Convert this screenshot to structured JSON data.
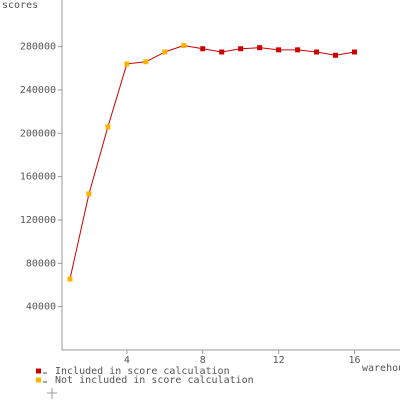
{
  "chart_data": {
    "type": "line",
    "y_label": "scores",
    "x_label": "warehouses",
    "x": [
      1,
      2,
      3,
      4,
      5,
      6,
      7,
      8,
      9,
      10,
      11,
      12,
      13,
      14,
      15,
      16
    ],
    "line_color": "#cc0000",
    "series": [
      {
        "name": "Included in score calculation",
        "color": "#cc0000",
        "values": [
          null,
          null,
          null,
          null,
          null,
          null,
          null,
          278000,
          275000,
          278000,
          279000,
          277000,
          277000,
          275000,
          272000,
          275000
        ]
      },
      {
        "name": "Not included in score calculation",
        "color": "#ffb300",
        "values": [
          65500,
          144000,
          206000,
          264000,
          266000,
          275000,
          281000,
          null,
          null,
          null,
          null,
          null,
          null,
          null,
          null,
          null
        ]
      }
    ],
    "xlim": [
      0.58,
      18.4
    ],
    "xticks": [
      4,
      8,
      12,
      16
    ],
    "ylim": [
      0,
      323000
    ],
    "yticks": [
      40000,
      80000,
      120000,
      160000,
      200000,
      240000,
      280000
    ],
    "grid": false,
    "legend": "bottom-left"
  }
}
